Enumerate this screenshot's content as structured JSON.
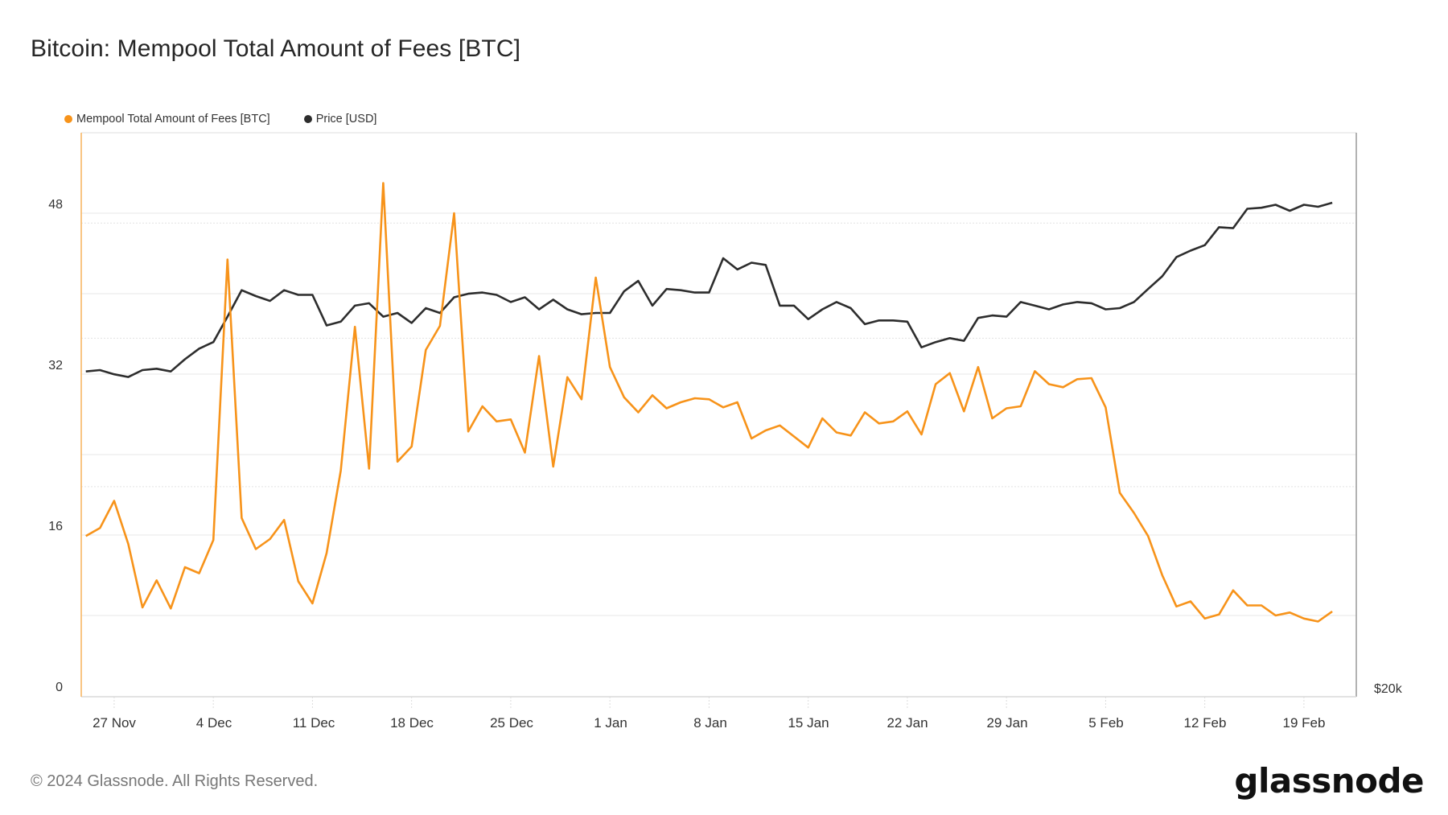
{
  "header": {
    "title": "Bitcoin: Mempool Total Amount of Fees [BTC]"
  },
  "legend": [
    {
      "label": "Mempool Total Amount of Fees [BTC]",
      "color": "#f7931a"
    },
    {
      "label": "Price [USD]",
      "color": "#2d2d2d"
    }
  ],
  "axes": {
    "left_ticks": [
      "0",
      "16",
      "32",
      "48"
    ],
    "right_ticks": [
      "$20k"
    ],
    "x_ticks": [
      "27 Nov",
      "4 Dec",
      "11 Dec",
      "18 Dec",
      "25 Dec",
      "1 Jan",
      "8 Jan",
      "15 Jan",
      "22 Jan",
      "29 Jan",
      "5 Feb",
      "12 Feb",
      "19 Feb"
    ]
  },
  "footer": {
    "copyright": "© 2024 Glassnode. All Rights Reserved.",
    "brand": "glassnode"
  },
  "chart_data": {
    "type": "line",
    "title": "Bitcoin: Mempool Total Amount of Fees [BTC]",
    "xlabel": "",
    "ylabel": "Mempool Total Amount of Fees [BTC]",
    "y2label": "Price [USD]",
    "ylim": [
      0,
      56
    ],
    "y2_scale": "log",
    "y2_min": 20000,
    "grid": true,
    "legend_position": "top-left",
    "x_start": "25 Nov 2023",
    "x_end": "21 Feb 2024",
    "x_interval": "1 day",
    "series": [
      {
        "name": "Mempool Total Amount of Fees [BTC]",
        "axis": "left",
        "color": "#f7931a",
        "values": [
          15.9,
          16.7,
          19.4,
          15.1,
          8.8,
          11.5,
          8.7,
          12.8,
          12.2,
          15.5,
          43.4,
          17.7,
          14.6,
          15.6,
          17.5,
          11.4,
          9.2,
          14.2,
          22.4,
          36.7,
          22.6,
          51.0,
          23.3,
          24.8,
          34.4,
          36.8,
          48.0,
          26.3,
          28.8,
          27.3,
          27.5,
          24.2,
          33.8,
          22.8,
          31.7,
          29.5,
          41.6,
          32.7,
          29.7,
          28.2,
          29.9,
          28.6,
          29.2,
          29.6,
          29.5,
          28.7,
          29.2,
          25.6,
          26.4,
          26.9,
          25.8,
          24.7,
          27.6,
          26.2,
          25.9,
          28.2,
          27.1,
          27.3,
          28.3,
          26.0,
          31.0,
          32.1,
          28.3,
          32.7,
          27.6,
          28.6,
          28.8,
          32.3,
          31.0,
          30.7,
          31.5,
          31.6,
          28.7,
          20.2,
          18.2,
          15.9,
          12.0,
          8.9,
          9.4,
          7.7,
          8.1,
          10.5,
          9.0,
          9.0,
          8.0,
          8.3,
          7.7,
          7.4,
          8.4
        ]
      },
      {
        "name": "Price [USD]",
        "axis": "right",
        "color": "#2d2d2d",
        "values": [
          37500,
          37600,
          37300,
          37100,
          37600,
          37700,
          37500,
          38400,
          39200,
          39700,
          41700,
          43900,
          43400,
          43000,
          43900,
          43500,
          43500,
          41000,
          41300,
          42600,
          42800,
          41700,
          42000,
          41200,
          42400,
          42000,
          43300,
          43600,
          43700,
          43500,
          42900,
          43300,
          42300,
          43100,
          42300,
          41900,
          42000,
          42000,
          43800,
          44700,
          42600,
          44000,
          43900,
          43700,
          43700,
          46700,
          45700,
          46300,
          46100,
          42600,
          42600,
          41500,
          42300,
          42900,
          42400,
          41100,
          41400,
          41400,
          41300,
          39300,
          39700,
          40000,
          39800,
          41600,
          41800,
          41700,
          42900,
          42600,
          42300,
          42700,
          42900,
          42800,
          42300,
          42400,
          42900,
          44000,
          45100,
          46800,
          47400,
          47900,
          49600,
          49500,
          51400,
          51500,
          51800,
          51200,
          51800,
          51600,
          52000
        ]
      }
    ]
  }
}
